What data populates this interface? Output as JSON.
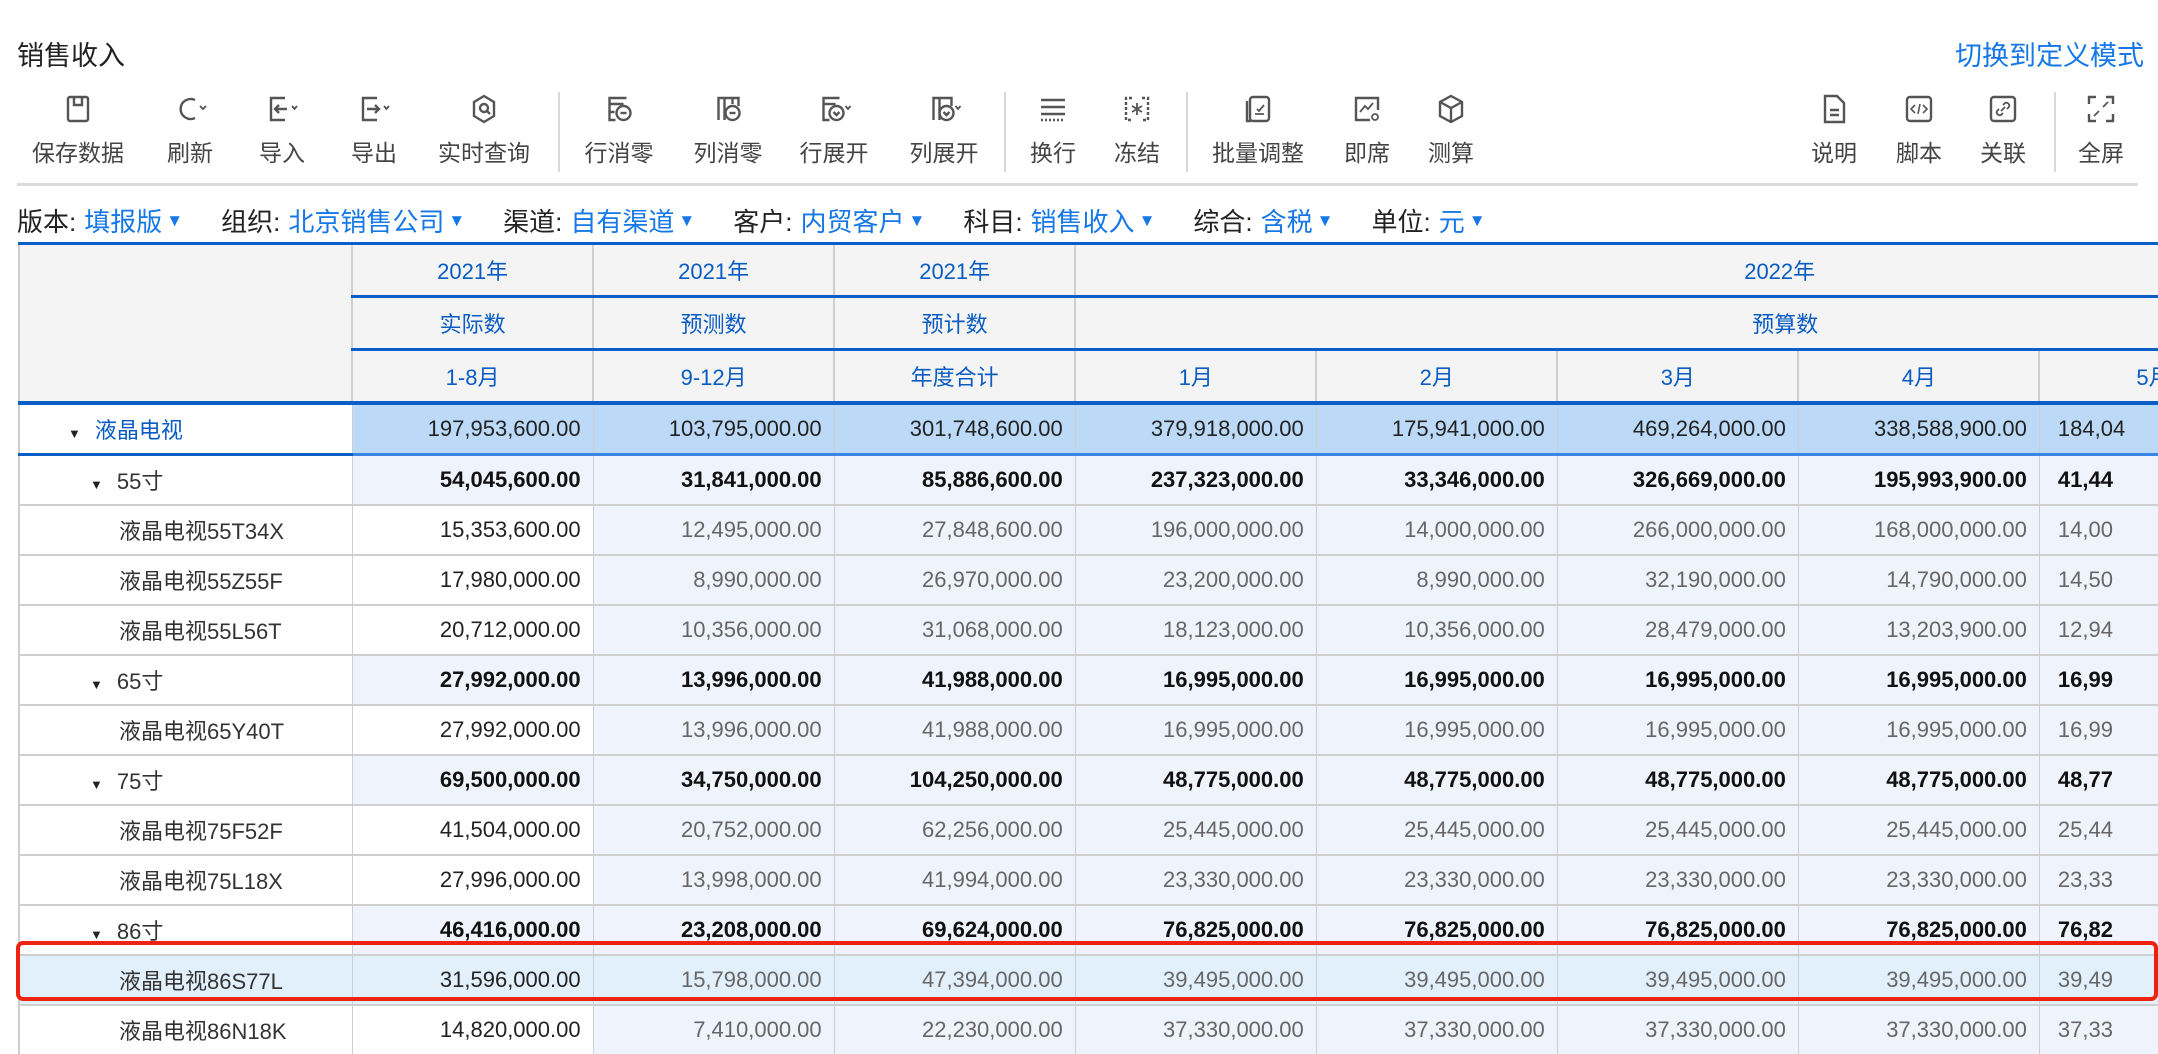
{
  "header": {
    "title": "销售收入",
    "switch_mode": "切换到定义模式"
  },
  "toolbar": {
    "items": [
      {
        "label": "保存数据",
        "icon": "save-icon"
      },
      {
        "label": "刷新",
        "icon": "refresh-icon"
      },
      {
        "label": "导入",
        "icon": "import-icon"
      },
      {
        "label": "导出",
        "icon": "export-icon"
      },
      {
        "label": "实时查询",
        "icon": "realtime-query-icon"
      },
      {
        "label": "行消零",
        "icon": "row-zero-suppress-icon"
      },
      {
        "label": "列消零",
        "icon": "column-zero-suppress-icon"
      },
      {
        "label": "行展开",
        "icon": "row-expand-icon"
      },
      {
        "label": "列展开",
        "icon": "column-expand-icon"
      },
      {
        "label": "换行",
        "icon": "wrap-icon"
      },
      {
        "label": "冻结",
        "icon": "freeze-icon"
      },
      {
        "label": "批量调整",
        "icon": "batch-adjust-icon"
      },
      {
        "label": "即席",
        "icon": "adhoc-icon"
      },
      {
        "label": "测算",
        "icon": "calculate-icon"
      },
      {
        "label": "说明",
        "icon": "document-icon"
      },
      {
        "label": "脚本",
        "icon": "script-icon"
      },
      {
        "label": "关联",
        "icon": "link-icon"
      },
      {
        "label": "全屏",
        "icon": "fullscreen-icon"
      }
    ]
  },
  "filters": [
    {
      "label": "版本:",
      "value": "填报版"
    },
    {
      "label": "组织:",
      "value": "北京销售公司"
    },
    {
      "label": "渠道:",
      "value": "自有渠道"
    },
    {
      "label": "客户:",
      "value": "内贸客户"
    },
    {
      "label": "科目:",
      "value": "销售收入"
    },
    {
      "label": "综合:",
      "value": "含税"
    },
    {
      "label": "单位:",
      "value": "元"
    }
  ],
  "grid": {
    "year_headers": [
      "2021年",
      "2021年",
      "2021年",
      "2022年"
    ],
    "type_headers": [
      "实际数",
      "预测数",
      "预计数",
      "预算数"
    ],
    "period_headers": [
      "1-8月",
      "9-12月",
      "年度合计",
      "1月",
      "2月",
      "3月",
      "4月",
      "5月"
    ],
    "rows": [
      {
        "label": "液晶电视",
        "kind": "total",
        "values": [
          "197,953,600.00",
          "103,795,000.00",
          "301,748,600.00",
          "379,918,000.00",
          "175,941,000.00",
          "469,264,000.00",
          "338,588,900.00",
          "184,04"
        ]
      },
      {
        "label": "55寸",
        "kind": "sub",
        "values": [
          "54,045,600.00",
          "31,841,000.00",
          "85,886,600.00",
          "237,323,000.00",
          "33,346,000.00",
          "326,669,000.00",
          "195,993,900.00",
          "41,44"
        ]
      },
      {
        "label": "液晶电视55T34X",
        "kind": "leaf",
        "values": [
          "15,353,600.00",
          "12,495,000.00",
          "27,848,600.00",
          "196,000,000.00",
          "14,000,000.00",
          "266,000,000.00",
          "168,000,000.00",
          "14,00"
        ]
      },
      {
        "label": "液晶电视55Z55F",
        "kind": "leaf",
        "values": [
          "17,980,000.00",
          "8,990,000.00",
          "26,970,000.00",
          "23,200,000.00",
          "8,990,000.00",
          "32,190,000.00",
          "14,790,000.00",
          "14,50"
        ]
      },
      {
        "label": "液晶电视55L56T",
        "kind": "leaf",
        "values": [
          "20,712,000.00",
          "10,356,000.00",
          "31,068,000.00",
          "18,123,000.00",
          "10,356,000.00",
          "28,479,000.00",
          "13,203,900.00",
          "12,94"
        ]
      },
      {
        "label": "65寸",
        "kind": "sub",
        "values": [
          "27,992,000.00",
          "13,996,000.00",
          "41,988,000.00",
          "16,995,000.00",
          "16,995,000.00",
          "16,995,000.00",
          "16,995,000.00",
          "16,99"
        ]
      },
      {
        "label": "液晶电视65Y40T",
        "kind": "leaf",
        "values": [
          "27,992,000.00",
          "13,996,000.00",
          "41,988,000.00",
          "16,995,000.00",
          "16,995,000.00",
          "16,995,000.00",
          "16,995,000.00",
          "16,99"
        ]
      },
      {
        "label": "75寸",
        "kind": "sub",
        "values": [
          "69,500,000.00",
          "34,750,000.00",
          "104,250,000.00",
          "48,775,000.00",
          "48,775,000.00",
          "48,775,000.00",
          "48,775,000.00",
          "48,77"
        ]
      },
      {
        "label": "液晶电视75F52F",
        "kind": "leaf",
        "values": [
          "41,504,000.00",
          "20,752,000.00",
          "62,256,000.00",
          "25,445,000.00",
          "25,445,000.00",
          "25,445,000.00",
          "25,445,000.00",
          "25,44"
        ]
      },
      {
        "label": "液晶电视75L18X",
        "kind": "leaf",
        "values": [
          "27,996,000.00",
          "13,998,000.00",
          "41,994,000.00",
          "23,330,000.00",
          "23,330,000.00",
          "23,330,000.00",
          "23,330,000.00",
          "23,33"
        ]
      },
      {
        "label": "86寸",
        "kind": "sub",
        "values": [
          "46,416,000.00",
          "23,208,000.00",
          "69,624,000.00",
          "76,825,000.00",
          "76,825,000.00",
          "76,825,000.00",
          "76,825,000.00",
          "76,82"
        ]
      },
      {
        "label": "液晶电视86S77L",
        "kind": "leaf",
        "selected": true,
        "values": [
          "31,596,000.00",
          "15,798,000.00",
          "47,394,000.00",
          "39,495,000.00",
          "39,495,000.00",
          "39,495,000.00",
          "39,495,000.00",
          "39,49"
        ]
      },
      {
        "label": "液晶电视86N18K",
        "kind": "leaf",
        "values": [
          "14,820,000.00",
          "7,410,000.00",
          "22,230,000.00",
          "37,330,000.00",
          "37,330,000.00",
          "37,330,000.00",
          "37,330,000.00",
          "37,33"
        ]
      }
    ]
  },
  "colors": {
    "accent": "#1677e6",
    "header_text": "#0a5cc2",
    "highlight": "#ee2211",
    "total_row": "#bcdaf7"
  }
}
